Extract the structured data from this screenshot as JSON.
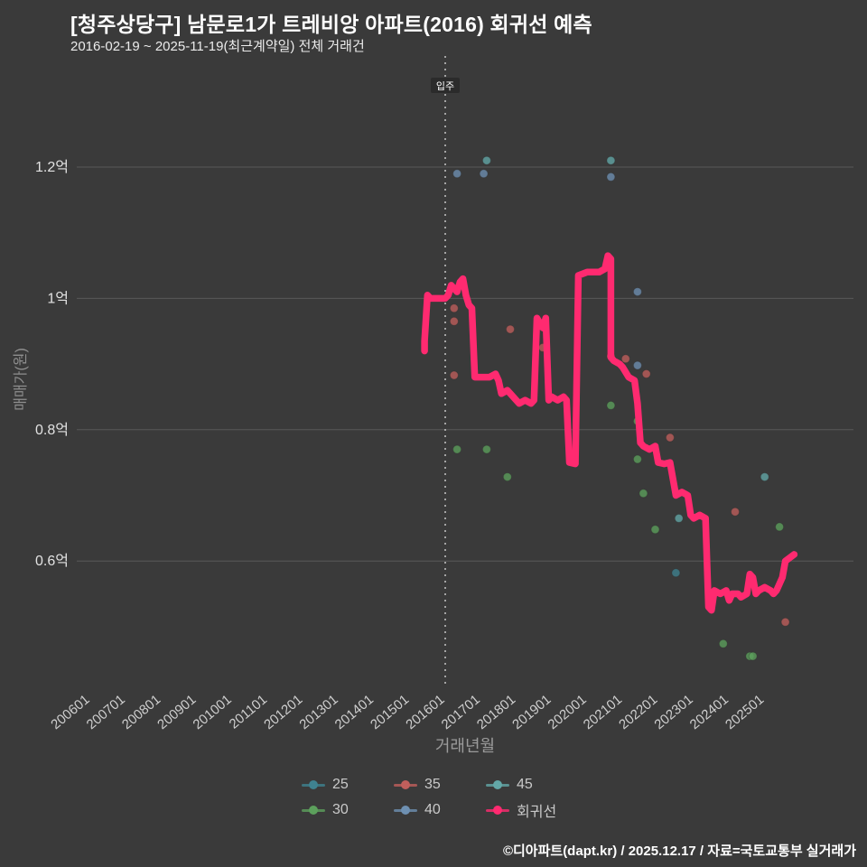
{
  "chart_data": {
    "type": "scatter",
    "title": "[청주상당구] 남문로1가 트레비앙 아파트(2016) 회귀선 예측",
    "subtitle": "2016-02-19 ~ 2025-11-19(최근계약일) 전체 거래건",
    "xlabel": "거래년월",
    "ylabel": "매매가(원)",
    "y_ticks": [
      {
        "label": "1.2억",
        "value": 1.2
      },
      {
        "label": "1억",
        "value": 1.0
      },
      {
        "label": "0.8억",
        "value": 0.8
      },
      {
        "label": "0.6억",
        "value": 0.6
      }
    ],
    "x_ticks": [
      "200601",
      "200701",
      "200801",
      "200901",
      "201001",
      "201101",
      "201201",
      "201301",
      "201401",
      "201501",
      "201601",
      "201701",
      "201801",
      "201901",
      "202001",
      "202101",
      "202201",
      "202301",
      "202401",
      "202501"
    ],
    "move_in": {
      "label": "입주",
      "x": "201601"
    },
    "series": [
      {
        "name": "25",
        "color": "#3f8290",
        "points": [
          [
            "202207",
            0.582
          ]
        ]
      },
      {
        "name": "30",
        "color": "#5ca05c",
        "points": [
          [
            "201605",
            0.77
          ],
          [
            "201703",
            0.77
          ],
          [
            "201710",
            0.728
          ],
          [
            "202009",
            0.837
          ],
          [
            "202106",
            0.813
          ],
          [
            "202106",
            0.755
          ],
          [
            "202108",
            0.703
          ],
          [
            "202112",
            0.648
          ],
          [
            "202311",
            0.474
          ],
          [
            "202408",
            0.455
          ],
          [
            "202409",
            0.455
          ],
          [
            "202506",
            0.652
          ]
        ]
      },
      {
        "name": "35",
        "color": "#c05f5c",
        "points": [
          [
            "201604",
            0.985
          ],
          [
            "201604",
            0.965
          ],
          [
            "201604",
            0.883
          ],
          [
            "201711",
            0.953
          ],
          [
            "201810",
            0.925
          ],
          [
            "202009",
            0.912
          ],
          [
            "202102",
            0.908
          ],
          [
            "202109",
            0.885
          ],
          [
            "202205",
            0.788
          ],
          [
            "202403",
            0.675
          ],
          [
            "202508",
            0.507
          ]
        ]
      },
      {
        "name": "40",
        "color": "#6e90b2",
        "points": [
          [
            "201605",
            1.19
          ],
          [
            "201702",
            1.19
          ],
          [
            "202009",
            1.185
          ],
          [
            "202106",
            1.01
          ],
          [
            "202106",
            0.898
          ]
        ]
      },
      {
        "name": "45",
        "color": "#63a8a8",
        "points": [
          [
            "201703",
            1.21
          ],
          [
            "202009",
            1.21
          ],
          [
            "202208",
            0.665
          ],
          [
            "202501",
            0.728
          ]
        ]
      }
    ],
    "regression": {
      "name": "회귀선",
      "color": "#ff2a70",
      "points": [
        [
          "201506",
          0.92
        ],
        [
          "201506",
          0.935
        ],
        [
          "201507",
          1.005
        ],
        [
          "201508",
          1.0
        ],
        [
          "201601",
          1.0
        ],
        [
          "201602",
          1.005
        ],
        [
          "201603",
          1.02
        ],
        [
          "201605",
          1.01
        ],
        [
          "201606",
          1.025
        ],
        [
          "201607",
          1.03
        ],
        [
          "201608",
          1.005
        ],
        [
          "201609",
          0.99
        ],
        [
          "201610",
          0.985
        ],
        [
          "201611",
          0.88
        ],
        [
          "201704",
          0.88
        ],
        [
          "201706",
          0.885
        ],
        [
          "201707",
          0.875
        ],
        [
          "201708",
          0.855
        ],
        [
          "201710",
          0.86
        ],
        [
          "201711",
          0.855
        ],
        [
          "201801",
          0.845
        ],
        [
          "201802",
          0.84
        ],
        [
          "201804",
          0.845
        ],
        [
          "201806",
          0.84
        ],
        [
          "201807",
          0.845
        ],
        [
          "201808",
          0.97
        ],
        [
          "201810",
          0.955
        ],
        [
          "201811",
          0.97
        ],
        [
          "201812",
          0.845
        ],
        [
          "201901",
          0.85
        ],
        [
          "201903",
          0.845
        ],
        [
          "201905",
          0.85
        ],
        [
          "201906",
          0.845
        ],
        [
          "201907",
          0.75
        ],
        [
          "201909",
          0.748
        ],
        [
          "201910",
          1.035
        ],
        [
          "202001",
          1.04
        ],
        [
          "202005",
          1.04
        ],
        [
          "202007",
          1.045
        ],
        [
          "202008",
          1.065
        ],
        [
          "202009",
          1.06
        ],
        [
          "202009",
          0.91
        ],
        [
          "202010",
          0.905
        ],
        [
          "202012",
          0.9
        ],
        [
          "202101",
          0.895
        ],
        [
          "202103",
          0.88
        ],
        [
          "202105",
          0.875
        ],
        [
          "202106",
          0.84
        ],
        [
          "202107",
          0.78
        ],
        [
          "202108",
          0.775
        ],
        [
          "202110",
          0.77
        ],
        [
          "202112",
          0.775
        ],
        [
          "202201",
          0.75
        ],
        [
          "202203",
          0.748
        ],
        [
          "202205",
          0.75
        ],
        [
          "202207",
          0.7
        ],
        [
          "202209",
          0.705
        ],
        [
          "202211",
          0.7
        ],
        [
          "202212",
          0.67
        ],
        [
          "202301",
          0.665
        ],
        [
          "202303",
          0.67
        ],
        [
          "202305",
          0.665
        ],
        [
          "202306",
          0.53
        ],
        [
          "202307",
          0.525
        ],
        [
          "202308",
          0.555
        ],
        [
          "202310",
          0.55
        ],
        [
          "202312",
          0.555
        ],
        [
          "202401",
          0.54
        ],
        [
          "202402",
          0.55
        ],
        [
          "202404",
          0.55
        ],
        [
          "202405",
          0.545
        ],
        [
          "202407",
          0.55
        ],
        [
          "202408",
          0.58
        ],
        [
          "202409",
          0.575
        ],
        [
          "202410",
          0.55
        ],
        [
          "202411",
          0.555
        ],
        [
          "202501",
          0.56
        ],
        [
          "202503",
          0.555
        ],
        [
          "202504",
          0.55
        ],
        [
          "202505",
          0.555
        ],
        [
          "202507",
          0.575
        ],
        [
          "202508",
          0.6
        ],
        [
          "202511",
          0.61
        ]
      ]
    }
  },
  "legend": {
    "rows": [
      [
        "25",
        "35",
        "45"
      ],
      [
        "30",
        "40",
        "회귀선"
      ]
    ]
  },
  "footer": {
    "credit": "©디아파트(dapt.kr) / 2025.12.17 / 자료=국토교통부 실거래가"
  }
}
